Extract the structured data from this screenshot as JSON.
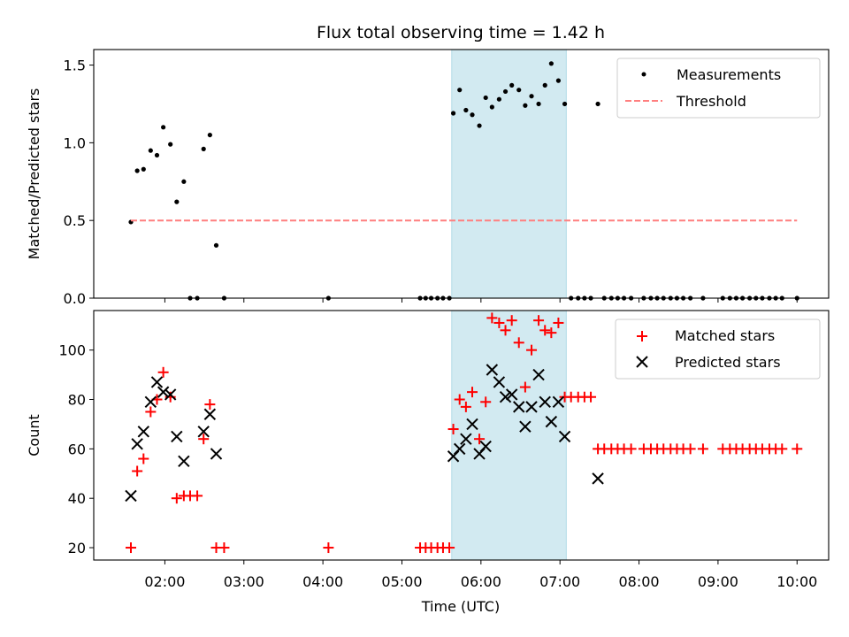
{
  "chart_data": {
    "type": "scatter",
    "title": "Flux total observing time = 1.42 h",
    "xlabel": "Time (UTC)",
    "x_unit": "hours UTC",
    "xlim": [
      1.1,
      10.4
    ],
    "x_tick_labels": [
      "02:00",
      "03:00",
      "04:00",
      "05:00",
      "06:00",
      "07:00",
      "08:00",
      "09:00",
      "10:00"
    ],
    "x_tick_values": [
      2,
      3,
      4,
      5,
      6,
      7,
      8,
      9,
      10
    ],
    "highlight_span": {
      "x": [
        5.63,
        7.08
      ],
      "color": "#add8e6"
    },
    "panels": [
      {
        "name": "ratio",
        "ylabel": "Matched/Predicted stars",
        "ylim": [
          0,
          1.6
        ],
        "y_ticks": [
          0,
          0.5,
          1.0,
          1.5
        ],
        "y_tick_labels": [
          "0.0",
          "0.5",
          "1.0",
          "1.5"
        ],
        "legend_position": "top-right",
        "series": [
          {
            "name": "Measurements",
            "marker": "dot",
            "color": "#000000",
            "points": [
              [
                1.57,
                0.49
              ],
              [
                1.65,
                0.82
              ],
              [
                1.73,
                0.83
              ],
              [
                1.82,
                0.95
              ],
              [
                1.9,
                0.92
              ],
              [
                1.98,
                1.1
              ],
              [
                2.07,
                0.99
              ],
              [
                2.15,
                0.62
              ],
              [
                2.24,
                0.75
              ],
              [
                2.32,
                0.0
              ],
              [
                2.41,
                0.0
              ],
              [
                2.49,
                0.96
              ],
              [
                2.57,
                1.05
              ],
              [
                2.65,
                0.34
              ],
              [
                2.75,
                0.0
              ],
              [
                4.07,
                0.0
              ],
              [
                5.23,
                0.0
              ],
              [
                5.3,
                0.0
              ],
              [
                5.37,
                0.0
              ],
              [
                5.45,
                0.0
              ],
              [
                5.52,
                0.0
              ],
              [
                5.6,
                0.0
              ],
              [
                5.65,
                1.19
              ],
              [
                5.73,
                1.34
              ],
              [
                5.81,
                1.21
              ],
              [
                5.89,
                1.18
              ],
              [
                5.98,
                1.11
              ],
              [
                6.06,
                1.29
              ],
              [
                6.14,
                1.23
              ],
              [
                6.23,
                1.28
              ],
              [
                6.31,
                1.33
              ],
              [
                6.39,
                1.37
              ],
              [
                6.48,
                1.34
              ],
              [
                6.56,
                1.24
              ],
              [
                6.64,
                1.3
              ],
              [
                6.73,
                1.25
              ],
              [
                6.81,
                1.37
              ],
              [
                6.89,
                1.51
              ],
              [
                6.98,
                1.4
              ],
              [
                7.06,
                1.25
              ],
              [
                7.14,
                0.0
              ],
              [
                7.23,
                0.0
              ],
              [
                7.31,
                0.0
              ],
              [
                7.39,
                0.0
              ],
              [
                7.48,
                1.25
              ],
              [
                7.56,
                0.0
              ],
              [
                7.65,
                0.0
              ],
              [
                7.73,
                0.0
              ],
              [
                7.81,
                0.0
              ],
              [
                7.9,
                0.0
              ],
              [
                8.06,
                0.0
              ],
              [
                8.15,
                0.0
              ],
              [
                8.23,
                0.0
              ],
              [
                8.31,
                0.0
              ],
              [
                8.4,
                0.0
              ],
              [
                8.48,
                0.0
              ],
              [
                8.56,
                0.0
              ],
              [
                8.65,
                0.0
              ],
              [
                8.81,
                0.0
              ],
              [
                9.06,
                0.0
              ],
              [
                9.15,
                0.0
              ],
              [
                9.23,
                0.0
              ],
              [
                9.31,
                0.0
              ],
              [
                9.4,
                0.0
              ],
              [
                9.48,
                0.0
              ],
              [
                9.56,
                0.0
              ],
              [
                9.65,
                0.0
              ],
              [
                9.73,
                0.0
              ],
              [
                9.81,
                0.0
              ],
              [
                10.0,
                0.0
              ]
            ]
          },
          {
            "name": "Threshold",
            "marker": "dashed-line",
            "color": "#ff7f7f",
            "points": [
              [
                1.57,
                0.5
              ],
              [
                10.0,
                0.5
              ]
            ]
          }
        ]
      },
      {
        "name": "count",
        "ylabel": "Count",
        "ylim": [
          15,
          116
        ],
        "y_ticks": [
          20,
          40,
          60,
          80,
          100
        ],
        "y_tick_labels": [
          "20",
          "40",
          "60",
          "80",
          "100"
        ],
        "legend_position": "top-right",
        "series": [
          {
            "name": "Matched stars",
            "marker": "plus",
            "color": "#ff0000",
            "points": [
              [
                1.57,
                20
              ],
              [
                1.65,
                51
              ],
              [
                1.73,
                56
              ],
              [
                1.82,
                75
              ],
              [
                1.9,
                80
              ],
              [
                1.98,
                91
              ],
              [
                2.07,
                81
              ],
              [
                2.15,
                40
              ],
              [
                2.24,
                41
              ],
              [
                2.32,
                41
              ],
              [
                2.41,
                41
              ],
              [
                2.49,
                64
              ],
              [
                2.57,
                78
              ],
              [
                2.65,
                20
              ],
              [
                2.75,
                20
              ],
              [
                4.07,
                20
              ],
              [
                5.23,
                20
              ],
              [
                5.3,
                20
              ],
              [
                5.37,
                20
              ],
              [
                5.45,
                20
              ],
              [
                5.52,
                20
              ],
              [
                5.6,
                20
              ],
              [
                5.65,
                68
              ],
              [
                5.73,
                80
              ],
              [
                5.81,
                77
              ],
              [
                5.89,
                83
              ],
              [
                5.98,
                64
              ],
              [
                6.06,
                79
              ],
              [
                6.14,
                113
              ],
              [
                6.23,
                111
              ],
              [
                6.31,
                108
              ],
              [
                6.39,
                112
              ],
              [
                6.48,
                103
              ],
              [
                6.56,
                85
              ],
              [
                6.64,
                100
              ],
              [
                6.73,
                112
              ],
              [
                6.81,
                108
              ],
              [
                6.89,
                107
              ],
              [
                6.98,
                111
              ],
              [
                7.06,
                81
              ],
              [
                7.14,
                81
              ],
              [
                7.23,
                81
              ],
              [
                7.31,
                81
              ],
              [
                7.39,
                81
              ],
              [
                7.48,
                60
              ],
              [
                7.56,
                60
              ],
              [
                7.65,
                60
              ],
              [
                7.73,
                60
              ],
              [
                7.81,
                60
              ],
              [
                7.9,
                60
              ],
              [
                8.06,
                60
              ],
              [
                8.15,
                60
              ],
              [
                8.23,
                60
              ],
              [
                8.31,
                60
              ],
              [
                8.4,
                60
              ],
              [
                8.48,
                60
              ],
              [
                8.56,
                60
              ],
              [
                8.65,
                60
              ],
              [
                8.81,
                60
              ],
              [
                9.06,
                60
              ],
              [
                9.15,
                60
              ],
              [
                9.23,
                60
              ],
              [
                9.31,
                60
              ],
              [
                9.4,
                60
              ],
              [
                9.48,
                60
              ],
              [
                9.56,
                60
              ],
              [
                9.65,
                60
              ],
              [
                9.73,
                60
              ],
              [
                9.81,
                60
              ],
              [
                10.0,
                60
              ]
            ]
          },
          {
            "name": "Predicted stars",
            "marker": "x",
            "color": "#000000",
            "points": [
              [
                1.57,
                41
              ],
              [
                1.65,
                62
              ],
              [
                1.73,
                67
              ],
              [
                1.82,
                79
              ],
              [
                1.9,
                87
              ],
              [
                1.98,
                83
              ],
              [
                2.07,
                82
              ],
              [
                2.15,
                65
              ],
              [
                2.24,
                55
              ],
              [
                2.49,
                67
              ],
              [
                2.57,
                74
              ],
              [
                2.65,
                58
              ],
              [
                5.65,
                57
              ],
              [
                5.73,
                60
              ],
              [
                5.81,
                64
              ],
              [
                5.89,
                70
              ],
              [
                5.98,
                58
              ],
              [
                6.06,
                61
              ],
              [
                6.14,
                92
              ],
              [
                6.23,
                87
              ],
              [
                6.31,
                81
              ],
              [
                6.39,
                82
              ],
              [
                6.48,
                77
              ],
              [
                6.56,
                69
              ],
              [
                6.64,
                77
              ],
              [
                6.73,
                90
              ],
              [
                6.81,
                79
              ],
              [
                6.89,
                71
              ],
              [
                6.98,
                79
              ],
              [
                7.06,
                65
              ],
              [
                7.48,
                48
              ]
            ]
          }
        ]
      }
    ]
  }
}
